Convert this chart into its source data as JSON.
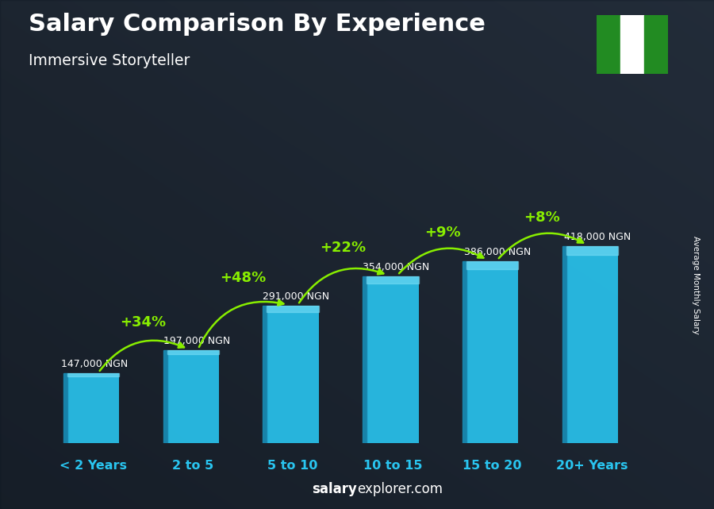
{
  "title": "Salary Comparison By Experience",
  "subtitle": "Immersive Storyteller",
  "categories": [
    "< 2 Years",
    "2 to 5",
    "5 to 10",
    "10 to 15",
    "15 to 20",
    "20+ Years"
  ],
  "values": [
    147000,
    197000,
    291000,
    354000,
    386000,
    418000
  ],
  "labels": [
    "147,000 NGN",
    "197,000 NGN",
    "291,000 NGN",
    "354,000 NGN",
    "386,000 NGN",
    "418,000 NGN"
  ],
  "pct_changes": [
    "+34%",
    "+48%",
    "+22%",
    "+9%",
    "+8%"
  ],
  "bar_color_main": "#29c5f0",
  "bar_color_dark": "#1888b0",
  "bar_color_light": "#7de0f8",
  "title_color": "#ffffff",
  "subtitle_color": "#ffffff",
  "label_color": "#ffffff",
  "pct_color": "#88ee00",
  "xcat_color": "#29c5f0",
  "ylabel_text": "Average Monthly Salary",
  "footer_bold": "salary",
  "footer_rest": "explorer.com",
  "flag_green": "#228B22",
  "flag_white": "#ffffff",
  "bg_dark": "#1a2030",
  "bg_photo_people": true,
  "ylim_factor": 1.55
}
